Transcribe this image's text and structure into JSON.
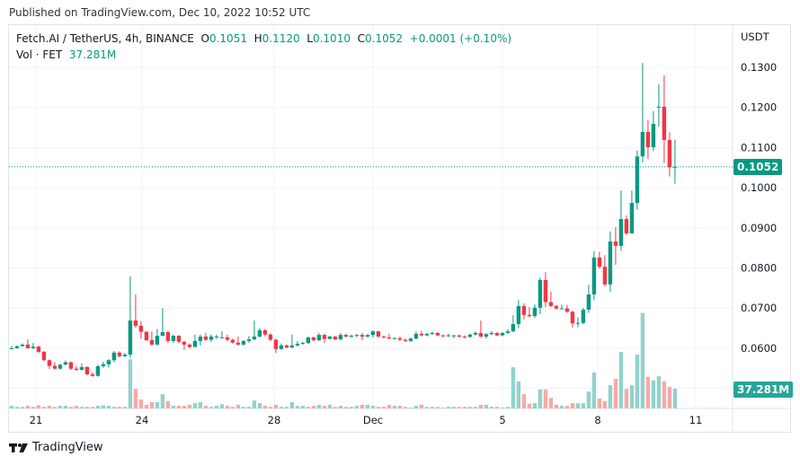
{
  "header": {
    "published": "Published on TradingView.com, Dec 10, 2022 10:52 UTC"
  },
  "legend": {
    "symbol": "Fetch.AI / TetherUS, 4h, BINANCE",
    "o_label": "O",
    "o": "0.1051",
    "h_label": "H",
    "h": "0.1120",
    "l_label": "L",
    "l": "0.1010",
    "c_label": "C",
    "c": "0.1052",
    "change": "+0.0001 (+0.10%)",
    "vol_label": "Vol · FET",
    "vol": "37.281M"
  },
  "footer": {
    "brand": "TradingView"
  },
  "colors": {
    "up": "#089981",
    "down": "#f23645",
    "vol_up": "#92d2cc",
    "vol_down": "#f7a9a7",
    "grid": "#f0f3fa",
    "vol_tag": "#26a69a"
  },
  "chart_data": {
    "type": "candlestick",
    "y_unit": "USDT",
    "ylim": [
      0.05,
      0.13
    ],
    "y_ticks": [
      "0.1300",
      "0.1200",
      "0.1100",
      "0.1000",
      "0.0900",
      "0.0800",
      "0.0700",
      "0.0600"
    ],
    "x_ticks": [
      "21",
      "24",
      "28",
      "Dec",
      "5",
      "8",
      "11"
    ],
    "last_price": "0.1052",
    "last_volume": "37.281M",
    "grid": true,
    "candles_fields": [
      "open",
      "high",
      "low",
      "close",
      "volume_M"
    ],
    "candles": [
      [
        0.0598,
        0.0606,
        0.0597,
        0.06,
        5
      ],
      [
        0.06,
        0.0607,
        0.0599,
        0.0605,
        3
      ],
      [
        0.0605,
        0.0612,
        0.0604,
        0.0609,
        3
      ],
      [
        0.0609,
        0.0622,
        0.0599,
        0.06,
        5
      ],
      [
        0.06,
        0.0613,
        0.0598,
        0.0604,
        3
      ],
      [
        0.0604,
        0.0606,
        0.0588,
        0.0591,
        6
      ],
      [
        0.0591,
        0.0593,
        0.0568,
        0.057,
        3
      ],
      [
        0.057,
        0.0572,
        0.0548,
        0.0556,
        5
      ],
      [
        0.0556,
        0.0565,
        0.0547,
        0.0549,
        3
      ],
      [
        0.0549,
        0.0561,
        0.0547,
        0.0559,
        5
      ],
      [
        0.0559,
        0.0569,
        0.0558,
        0.0565,
        5
      ],
      [
        0.0565,
        0.0567,
        0.0546,
        0.0549,
        3
      ],
      [
        0.0549,
        0.0556,
        0.0544,
        0.0546,
        5
      ],
      [
        0.0546,
        0.0562,
        0.0545,
        0.0553,
        3
      ],
      [
        0.0553,
        0.0555,
        0.0532,
        0.0535,
        3
      ],
      [
        0.0535,
        0.054,
        0.0529,
        0.0531,
        3
      ],
      [
        0.0531,
        0.0559,
        0.0529,
        0.0555,
        5
      ],
      [
        0.0555,
        0.0566,
        0.0551,
        0.056,
        6
      ],
      [
        0.056,
        0.0573,
        0.0552,
        0.057,
        5
      ],
      [
        0.057,
        0.0593,
        0.0565,
        0.0589,
        3
      ],
      [
        0.0589,
        0.0592,
        0.0577,
        0.058,
        3
      ],
      [
        0.058,
        0.0588,
        0.0578,
        0.0584,
        3
      ],
      [
        0.0584,
        0.0779,
        0.0576,
        0.0669,
        93
      ],
      [
        0.0669,
        0.0734,
        0.0651,
        0.0656,
        37
      ],
      [
        0.0656,
        0.0667,
        0.0624,
        0.0641,
        17
      ],
      [
        0.0641,
        0.0642,
        0.0618,
        0.062,
        7
      ],
      [
        0.062,
        0.0642,
        0.0606,
        0.0609,
        12
      ],
      [
        0.0609,
        0.0648,
        0.0607,
        0.0631,
        12
      ],
      [
        0.0631,
        0.07,
        0.063,
        0.064,
        27
      ],
      [
        0.064,
        0.0643,
        0.0613,
        0.0618,
        14
      ],
      [
        0.0618,
        0.0634,
        0.0614,
        0.0631,
        5
      ],
      [
        0.0631,
        0.0633,
        0.0612,
        0.0616,
        5
      ],
      [
        0.0616,
        0.0618,
        0.0596,
        0.0609,
        5
      ],
      [
        0.0609,
        0.0612,
        0.06,
        0.0603,
        7
      ],
      [
        0.0603,
        0.0634,
        0.0603,
        0.0618,
        10
      ],
      [
        0.0618,
        0.0634,
        0.0607,
        0.0629,
        12
      ],
      [
        0.0629,
        0.0638,
        0.0618,
        0.0621,
        5
      ],
      [
        0.0621,
        0.0634,
        0.0616,
        0.0629,
        3
      ],
      [
        0.0629,
        0.0634,
        0.0624,
        0.0629,
        5
      ],
      [
        0.0627,
        0.0642,
        0.0624,
        0.0627,
        8
      ],
      [
        0.0627,
        0.0634,
        0.0618,
        0.0621,
        5
      ],
      [
        0.0621,
        0.0624,
        0.0611,
        0.0614,
        3
      ],
      [
        0.0614,
        0.0629,
        0.0607,
        0.0609,
        7
      ],
      [
        0.0609,
        0.062,
        0.0607,
        0.0618,
        3
      ],
      [
        0.0618,
        0.063,
        0.0614,
        0.0622,
        3
      ],
      [
        0.0622,
        0.0669,
        0.062,
        0.0629,
        15
      ],
      [
        0.0629,
        0.065,
        0.0627,
        0.0645,
        10
      ],
      [
        0.0645,
        0.0648,
        0.0629,
        0.0634,
        5
      ],
      [
        0.0634,
        0.0638,
        0.0618,
        0.0621,
        3
      ],
      [
        0.0621,
        0.0624,
        0.0588,
        0.0598,
        7
      ],
      [
        0.0598,
        0.0612,
        0.0596,
        0.0607,
        3
      ],
      [
        0.0607,
        0.0609,
        0.0599,
        0.0602,
        3
      ],
      [
        0.0602,
        0.0634,
        0.06,
        0.0607,
        12
      ],
      [
        0.0607,
        0.0618,
        0.0604,
        0.0611,
        5
      ],
      [
        0.0611,
        0.0616,
        0.0609,
        0.0613,
        5
      ],
      [
        0.0613,
        0.0629,
        0.0611,
        0.0627,
        3
      ],
      [
        0.0627,
        0.0629,
        0.0617,
        0.062,
        5
      ],
      [
        0.062,
        0.0638,
        0.0618,
        0.0633,
        7
      ],
      [
        0.0633,
        0.0636,
        0.0613,
        0.0623,
        5
      ],
      [
        0.0623,
        0.0631,
        0.0622,
        0.0629,
        7
      ],
      [
        0.0629,
        0.0631,
        0.062,
        0.0622,
        3
      ],
      [
        0.0622,
        0.0638,
        0.062,
        0.0633,
        5
      ],
      [
        0.0633,
        0.0636,
        0.0627,
        0.0629,
        3
      ],
      [
        0.0629,
        0.0634,
        0.0626,
        0.0631,
        3
      ],
      [
        0.0631,
        0.0635,
        0.0627,
        0.0633,
        5
      ],
      [
        0.0633,
        0.0638,
        0.062,
        0.0629,
        7
      ],
      [
        0.0629,
        0.0635,
        0.0627,
        0.0633,
        7
      ],
      [
        0.0633,
        0.0645,
        0.0627,
        0.0642,
        5
      ],
      [
        0.0642,
        0.0643,
        0.0626,
        0.0629,
        3
      ],
      [
        0.0629,
        0.0631,
        0.0624,
        0.0627,
        3
      ],
      [
        0.0627,
        0.0636,
        0.0623,
        0.0624,
        7
      ],
      [
        0.0624,
        0.0627,
        0.0622,
        0.0625,
        5
      ],
      [
        0.0625,
        0.0629,
        0.0618,
        0.0621,
        5
      ],
      [
        0.0621,
        0.0624,
        0.0616,
        0.0618,
        3
      ],
      [
        0.0618,
        0.0627,
        0.0616,
        0.0624,
        1.5
      ],
      [
        0.0624,
        0.0642,
        0.0622,
        0.0636,
        5
      ],
      [
        0.0636,
        0.0643,
        0.063,
        0.0632,
        7
      ],
      [
        0.0632,
        0.0638,
        0.063,
        0.0636,
        3
      ],
      [
        0.0636,
        0.0642,
        0.0633,
        0.0638,
        3
      ],
      [
        0.0638,
        0.064,
        0.063,
        0.0632,
        3
      ],
      [
        0.0632,
        0.0634,
        0.0627,
        0.063,
        1.5
      ],
      [
        0.063,
        0.0636,
        0.0628,
        0.0632,
        3
      ],
      [
        0.0632,
        0.0633,
        0.0625,
        0.0632,
        3
      ],
      [
        0.0632,
        0.0633,
        0.0627,
        0.0629,
        3
      ],
      [
        0.0629,
        0.0632,
        0.0624,
        0.0628,
        3
      ],
      [
        0.0628,
        0.0636,
        0.0627,
        0.0634,
        3
      ],
      [
        0.0634,
        0.0642,
        0.0632,
        0.0638,
        3
      ],
      [
        0.0638,
        0.0669,
        0.0627,
        0.0629,
        7
      ],
      [
        0.0629,
        0.0638,
        0.0624,
        0.0635,
        7
      ],
      [
        0.0635,
        0.0642,
        0.0633,
        0.0638,
        3
      ],
      [
        0.0638,
        0.064,
        0.063,
        0.0632,
        3
      ],
      [
        0.0632,
        0.064,
        0.063,
        0.0638,
        1.5
      ],
      [
        0.0638,
        0.0647,
        0.0636,
        0.0642,
        3
      ],
      [
        0.0642,
        0.0682,
        0.064,
        0.066,
        78
      ],
      [
        0.066,
        0.072,
        0.065,
        0.0705,
        51
      ],
      [
        0.0705,
        0.0712,
        0.0672,
        0.0683,
        27
      ],
      [
        0.0683,
        0.0703,
        0.0677,
        0.068,
        9
      ],
      [
        0.068,
        0.0709,
        0.0676,
        0.0701,
        10
      ],
      [
        0.0701,
        0.0776,
        0.0685,
        0.077,
        36
      ],
      [
        0.077,
        0.079,
        0.0702,
        0.0715,
        36
      ],
      [
        0.0715,
        0.0741,
        0.0702,
        0.0705,
        20
      ],
      [
        0.0705,
        0.0708,
        0.0696,
        0.0699,
        7
      ],
      [
        0.0699,
        0.0708,
        0.0698,
        0.0699,
        5
      ],
      [
        0.0699,
        0.0708,
        0.0688,
        0.0691,
        5
      ],
      [
        0.0691,
        0.0693,
        0.0652,
        0.0662,
        10
      ],
      [
        0.0662,
        0.0677,
        0.0652,
        0.0663,
        10
      ],
      [
        0.0663,
        0.0701,
        0.066,
        0.0696,
        10
      ],
      [
        0.0696,
        0.0758,
        0.0688,
        0.0734,
        32
      ],
      [
        0.0734,
        0.0842,
        0.072,
        0.0826,
        68
      ],
      [
        0.0826,
        0.084,
        0.0798,
        0.0803,
        19
      ],
      [
        0.0803,
        0.0832,
        0.0754,
        0.0759,
        14
      ],
      [
        0.0759,
        0.0891,
        0.0741,
        0.0866,
        44
      ],
      [
        0.0866,
        0.0902,
        0.0808,
        0.0855,
        56
      ],
      [
        0.0855,
        0.0993,
        0.0843,
        0.0922,
        107
      ],
      [
        0.0922,
        0.0931,
        0.0882,
        0.0886,
        37
      ],
      [
        0.0886,
        0.0993,
        0.0886,
        0.0962,
        44
      ],
      [
        0.0962,
        0.1093,
        0.0945,
        0.1078,
        102
      ],
      [
        0.1078,
        0.1311,
        0.1063,
        0.1139,
        181
      ],
      [
        0.1139,
        0.1168,
        0.1072,
        0.1101,
        60
      ],
      [
        0.1101,
        0.1191,
        0.1091,
        0.1159,
        53
      ],
      [
        0.1202,
        0.1258,
        0.1152,
        0.1202,
        61
      ],
      [
        0.1202,
        0.128,
        0.1062,
        0.1119,
        51
      ],
      [
        0.1119,
        0.1138,
        0.1028,
        0.1051,
        41
      ],
      [
        0.1051,
        0.112,
        0.101,
        0.1052,
        37.281
      ]
    ]
  }
}
